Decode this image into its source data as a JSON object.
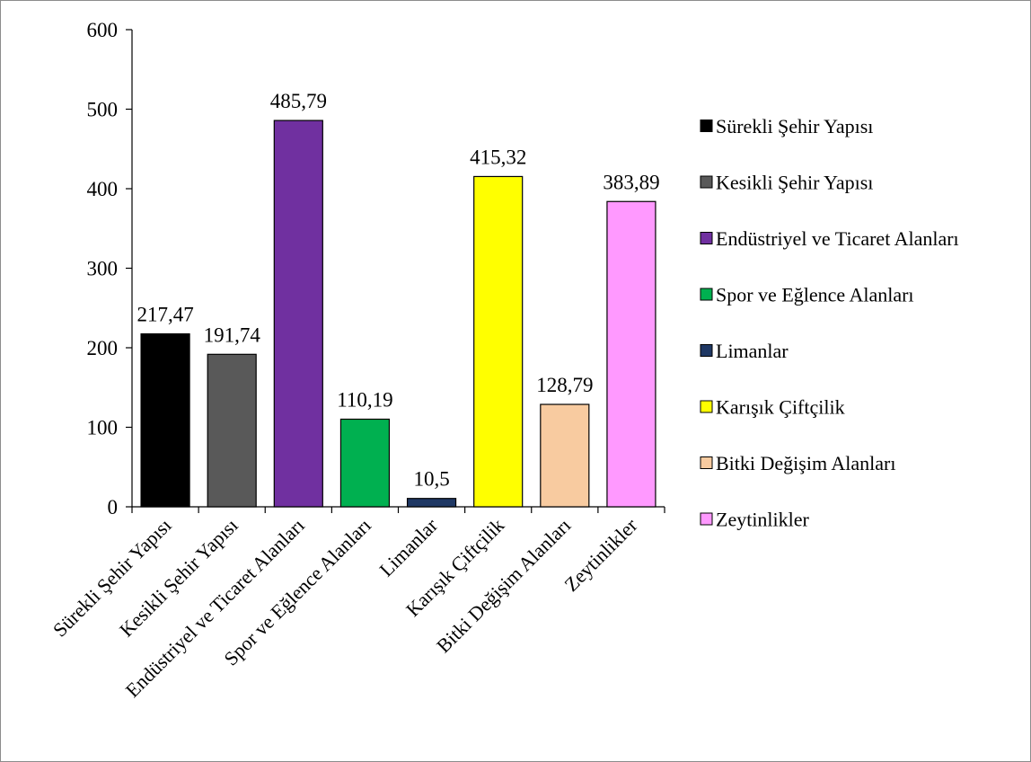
{
  "chart_data": {
    "type": "bar",
    "categories": [
      "Sürekli Şehir Yapısı",
      "Kesikli Şehir Yapısı",
      "Endüstriyel ve Ticaret Alanları",
      "Spor ve Eğlence Alanları",
      "Limanlar",
      "Karışık Çiftçilik",
      "Bitki Değişim Alanları",
      "Zeytinlikler"
    ],
    "values": [
      217.47,
      191.74,
      485.79,
      110.19,
      10.5,
      415.32,
      128.79,
      383.89
    ],
    "data_labels": [
      "217,47",
      "191,74",
      "485,79",
      "110,19",
      "10,5",
      "415,32",
      "128,79",
      "383,89"
    ],
    "colors": [
      "#000000",
      "#595959",
      "#7030a0",
      "#00b050",
      "#1f3864",
      "#ffff00",
      "#f8cba0",
      "#ff99ff"
    ],
    "ylim": [
      0,
      600
    ],
    "yticks": [
      "0",
      "100",
      "200",
      "300",
      "400",
      "500",
      "600"
    ],
    "title": "",
    "xlabel": "",
    "ylabel": "",
    "grid": false,
    "legend_placement": "right",
    "legend": [
      "Sürekli Şehir Yapısı",
      "Kesikli Şehir Yapısı",
      "Endüstriyel ve Ticaret Alanları",
      "Spor ve Eğlence Alanları",
      "Limanlar",
      "Karışık Çiftçilik",
      "Bitki Değişim Alanları",
      "Zeytinlikler"
    ]
  }
}
